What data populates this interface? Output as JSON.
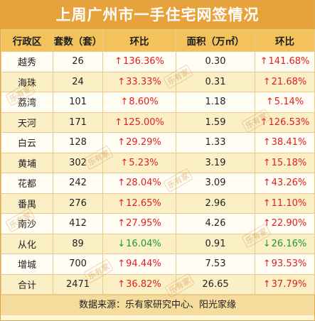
{
  "title": "上周广州市一手住宅网签情况",
  "headers": [
    "行政区",
    "套数（套）",
    "环比",
    "面积（万㎡）",
    "环比"
  ],
  "rows": [
    {
      "district": "越秀",
      "units": "26",
      "units_mom": "136.36%",
      "units_dir": "up",
      "area": "0.30",
      "area_mom": "141.68%",
      "area_dir": "up"
    },
    {
      "district": "海珠",
      "units": "24",
      "units_mom": "33.33%",
      "units_dir": "up",
      "area": "0.31",
      "area_mom": "21.68%",
      "area_dir": "up"
    },
    {
      "district": "荔湾",
      "units": "101",
      "units_mom": "8.60%",
      "units_dir": "up",
      "area": "1.18",
      "area_mom": "5.14%",
      "area_dir": "up"
    },
    {
      "district": "天河",
      "units": "171",
      "units_mom": "125.00%",
      "units_dir": "up",
      "area": "1.59",
      "area_mom": "126.53%",
      "area_dir": "up"
    },
    {
      "district": "白云",
      "units": "128",
      "units_mom": "29.29%",
      "units_dir": "up",
      "area": "1.33",
      "area_mom": "38.41%",
      "area_dir": "up"
    },
    {
      "district": "黄埔",
      "units": "302",
      "units_mom": "5.23%",
      "units_dir": "up",
      "area": "3.19",
      "area_mom": "15.18%",
      "area_dir": "up"
    },
    {
      "district": "花都",
      "units": "242",
      "units_mom": "28.04%",
      "units_dir": "up",
      "area": "3.09",
      "area_mom": "43.26%",
      "area_dir": "up"
    },
    {
      "district": "番禺",
      "units": "276",
      "units_mom": "12.65%",
      "units_dir": "up",
      "area": "2.96",
      "area_mom": "11.10%",
      "area_dir": "up"
    },
    {
      "district": "南沙",
      "units": "412",
      "units_mom": "27.95%",
      "units_dir": "up",
      "area": "4.26",
      "area_mom": "22.90%",
      "area_dir": "up"
    },
    {
      "district": "从化",
      "units": "89",
      "units_mom": "16.04%",
      "units_dir": "down",
      "area": "0.91",
      "area_mom": "26.16%",
      "area_dir": "down"
    },
    {
      "district": "增城",
      "units": "700",
      "units_mom": "94.44%",
      "units_dir": "up",
      "area": "7.53",
      "area_mom": "93.53%",
      "area_dir": "up"
    },
    {
      "district": "合计",
      "units": "2471",
      "units_mom": "36.82%",
      "units_dir": "up",
      "area": "26.65",
      "area_mom": "37.79%",
      "area_dir": "up"
    }
  ],
  "footer": "数据来源：乐有家研究中心、阳光家缘",
  "watermark": "乐有家",
  "arrows": {
    "up": "↑",
    "down": "↓"
  },
  "colors": {
    "header_bg": "#e8a23c",
    "col_header_bg": "#f3c25a",
    "up": "#e02020",
    "down": "#1a9a3a"
  }
}
